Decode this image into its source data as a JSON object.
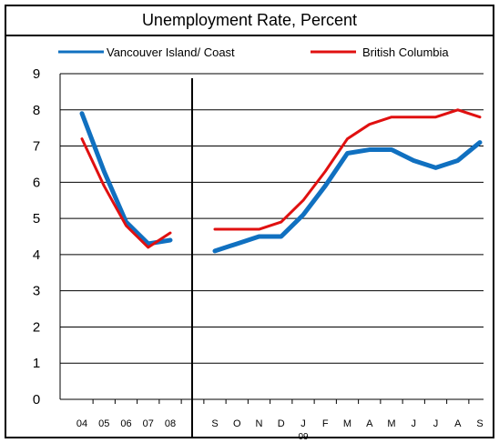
{
  "chart_data": {
    "type": "line",
    "title": "Unemployment Rate, Percent",
    "xlabel": "",
    "ylabel": "",
    "ylim": [
      0,
      9
    ],
    "yticks": [
      "0",
      "1",
      "2",
      "3",
      "4",
      "5",
      "6",
      "7",
      "8",
      "9"
    ],
    "grid": "horizontal",
    "legend_position": "top",
    "annual_categories": [
      "04",
      "05",
      "06",
      "07",
      "08"
    ],
    "monthly_categories": [
      "S",
      "O",
      "N",
      "D",
      "J",
      "F",
      "M",
      "A",
      "M",
      "J",
      "J",
      "A",
      "S"
    ],
    "year_marker": "09",
    "series": [
      {
        "name": "Vancouver Island/ Coast",
        "color": "#1070c0",
        "annual_values": [
          7.9,
          6.3,
          4.9,
          4.3,
          4.4
        ],
        "monthly_values": [
          4.1,
          4.3,
          4.5,
          4.5,
          5.1,
          5.9,
          6.8,
          6.9,
          6.9,
          6.6,
          6.4,
          6.6,
          7.1
        ]
      },
      {
        "name": "British Columbia",
        "color": "#e01010",
        "annual_values": [
          7.2,
          5.9,
          4.8,
          4.2,
          4.6
        ],
        "monthly_values": [
          4.7,
          4.7,
          4.7,
          4.9,
          5.5,
          6.3,
          7.2,
          7.6,
          7.8,
          7.8,
          7.8,
          8.0,
          7.8
        ]
      }
    ]
  }
}
